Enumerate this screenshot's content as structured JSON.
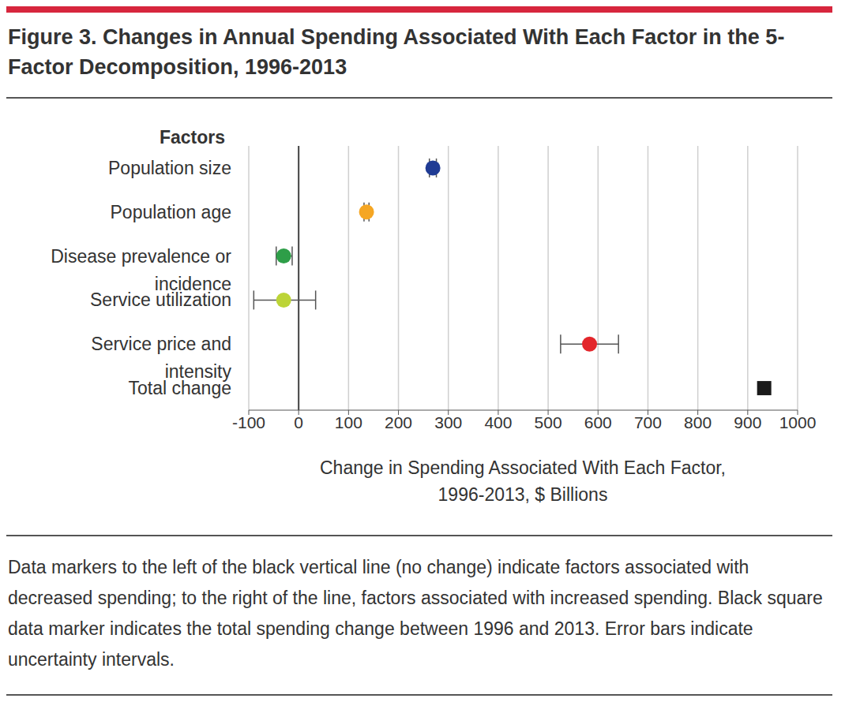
{
  "chart_data": {
    "type": "scatter",
    "title": "Figure 3. Changes in Annual Spending Associated With Each Factor in the 5-Factor Decomposition, 1996-2013",
    "ylabel": "Factors",
    "xlabel": "Change in Spending Associated With Each Factor, 1996-2013, $ Billions",
    "orientation": "horizontal",
    "categories": [
      "Population size",
      "Population age",
      "Disease prevalence or incidence",
      "Service utilization",
      "Service price and intensity"
    ],
    "values": [
      269,
      136,
      -30,
      -30,
      583
    ],
    "lower": [
      262,
      131,
      -45,
      -90,
      525
    ],
    "upper": [
      276,
      141,
      -13,
      34,
      641
    ],
    "colors": [
      "#1f3b94",
      "#f5a623",
      "#2e9e48",
      "#bcd437",
      "#e3262b"
    ],
    "marker": "circle",
    "total": {
      "category": "Total change",
      "value": 933,
      "color": "#1a1a1a",
      "marker": "square"
    },
    "baseline": 0,
    "xlim": [
      -100,
      1000
    ],
    "xticks": [
      -100,
      0,
      100,
      200,
      300,
      400,
      500,
      600,
      700,
      800,
      900,
      1000
    ],
    "grid": true,
    "caption": "Data markers to the left of the black vertical line (no change) indicate factors associated with decreased spending; to the right of the line, factors associated with increased spending. Black square data marker indicates the total spending change between 1996 and 2013. Error bars indicate uncertainty intervals."
  }
}
